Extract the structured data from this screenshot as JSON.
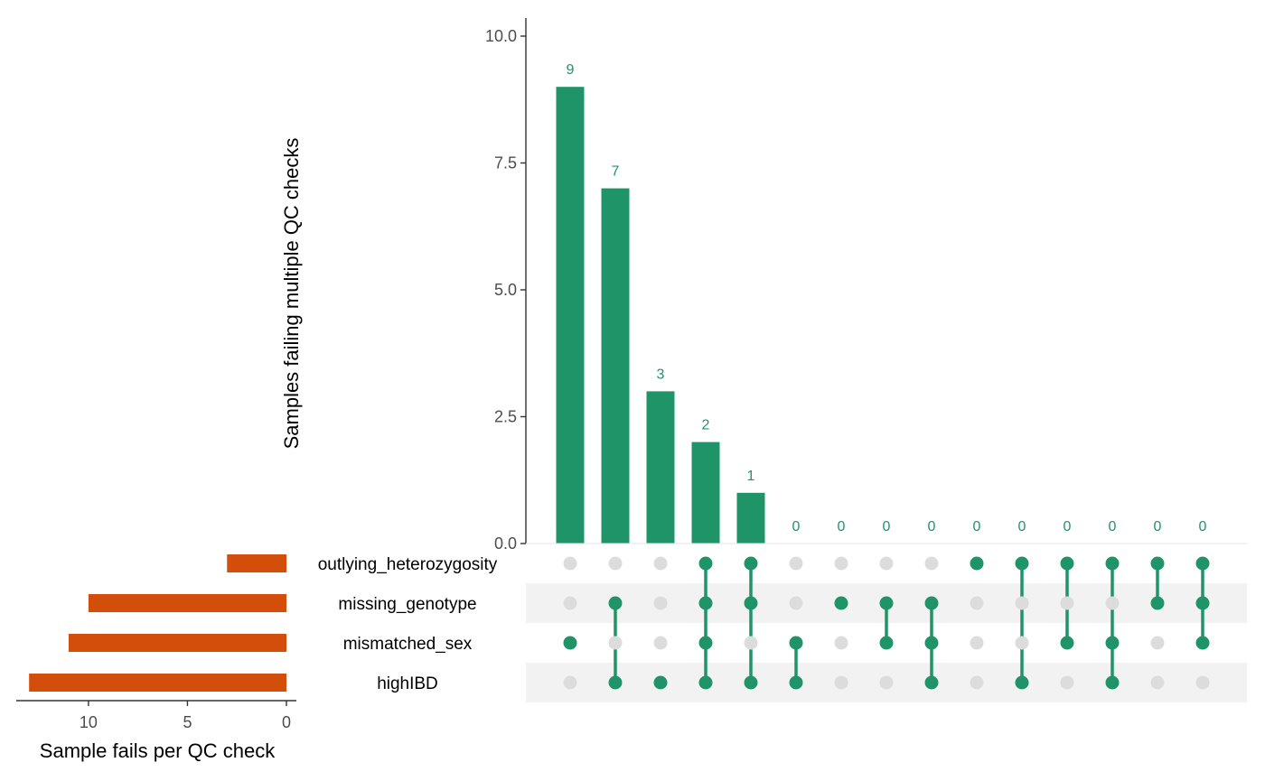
{
  "chart_data": {
    "type": "bar",
    "title": "",
    "ylabel": "Samples failing multiple QC checks",
    "ylim": [
      0,
      10.0
    ],
    "yticks": [
      "0.0",
      "2.5",
      "5.0",
      "7.5",
      "10.0"
    ],
    "intersections": [
      {
        "value": 9,
        "sets": [
          "mismatched_sex"
        ]
      },
      {
        "value": 7,
        "sets": [
          "missing_genotype",
          "highIBD"
        ]
      },
      {
        "value": 3,
        "sets": [
          "highIBD"
        ]
      },
      {
        "value": 2,
        "sets": [
          "outlying_heterozygosity",
          "missing_genotype",
          "mismatched_sex",
          "highIBD"
        ]
      },
      {
        "value": 1,
        "sets": [
          "outlying_heterozygosity",
          "missing_genotype",
          "highIBD"
        ]
      },
      {
        "value": 0,
        "sets": [
          "mismatched_sex",
          "highIBD"
        ]
      },
      {
        "value": 0,
        "sets": [
          "missing_genotype"
        ]
      },
      {
        "value": 0,
        "sets": [
          "missing_genotype",
          "mismatched_sex"
        ]
      },
      {
        "value": 0,
        "sets": [
          "missing_genotype",
          "mismatched_sex",
          "highIBD"
        ]
      },
      {
        "value": 0,
        "sets": [
          "outlying_heterozygosity"
        ]
      },
      {
        "value": 0,
        "sets": [
          "outlying_heterozygosity",
          "highIBD"
        ]
      },
      {
        "value": 0,
        "sets": [
          "outlying_heterozygosity",
          "mismatched_sex"
        ]
      },
      {
        "value": 0,
        "sets": [
          "outlying_heterozygosity",
          "mismatched_sex",
          "highIBD"
        ]
      },
      {
        "value": 0,
        "sets": [
          "outlying_heterozygosity",
          "missing_genotype"
        ]
      },
      {
        "value": 0,
        "sets": [
          "outlying_heterozygosity",
          "missing_genotype",
          "mismatched_sex"
        ]
      }
    ],
    "sets": [
      {
        "name": "outlying_heterozygosity",
        "size": 3
      },
      {
        "name": "missing_genotype",
        "size": 10
      },
      {
        "name": "mismatched_sex",
        "size": 11
      },
      {
        "name": "highIBD",
        "size": 13
      }
    ],
    "set_size_axis": {
      "xlabel": "Sample fails per QC check",
      "xlim": [
        0,
        14
      ],
      "reversed": true,
      "ticks": [
        "10",
        "5",
        "0"
      ]
    },
    "colors": {
      "intersection_bars": "#1f9468",
      "set_bars": "#d24e0a",
      "inactive_dot": "#dcdcdc",
      "stripe": "#f2f2f2"
    }
  }
}
